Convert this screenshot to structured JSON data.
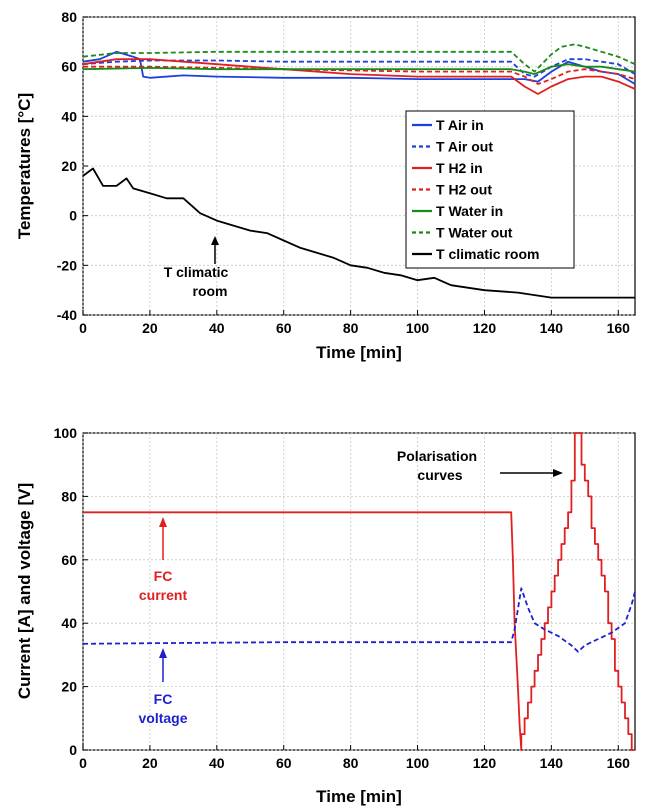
{
  "chart_data": [
    {
      "type": "line",
      "xlabel": "Time [min]",
      "ylabel": "Temperatures [°C]",
      "xlim": [
        0,
        165
      ],
      "ylim": [
        -40,
        80
      ],
      "xticks": [
        "0",
        "20",
        "40",
        "60",
        "80",
        "100",
        "120",
        "140",
        "160"
      ],
      "yticks": [
        "-40",
        "-20",
        "0",
        "20",
        "40",
        "60",
        "80"
      ],
      "legend_position": "inside-right",
      "series": [
        {
          "name": "T Air in",
          "color": "#1f3fdc",
          "dash": "solid",
          "x": [
            0,
            5,
            10,
            15,
            17,
            18,
            20,
            30,
            40,
            60,
            80,
            100,
            120,
            128,
            132,
            136,
            140,
            145,
            150,
            155,
            160,
            165
          ],
          "y": [
            62,
            63,
            66,
            64,
            63,
            56,
            55.5,
            56.5,
            56,
            55.5,
            55.5,
            55,
            55,
            55,
            55,
            54,
            58,
            62,
            60,
            58,
            57,
            53
          ]
        },
        {
          "name": "T Air out",
          "color": "#1f3fdc",
          "dash": "dash",
          "x": [
            0,
            10,
            20,
            40,
            60,
            80,
            100,
            120,
            128,
            132,
            135,
            140,
            145,
            150,
            155,
            160,
            165
          ],
          "y": [
            61,
            62,
            62.5,
            62.5,
            62,
            62,
            62,
            62,
            62,
            57,
            56,
            60,
            63,
            63,
            62,
            61,
            57
          ]
        },
        {
          "name": "T H2 in",
          "color": "#e02020",
          "dash": "solid",
          "x": [
            0,
            10,
            20,
            30,
            40,
            60,
            80,
            100,
            120,
            128,
            132,
            136,
            140,
            145,
            150,
            155,
            160,
            165
          ],
          "y": [
            61,
            63,
            63,
            62,
            61,
            59,
            57,
            56,
            56,
            56,
            52,
            49,
            52,
            55,
            56,
            56,
            54,
            51
          ]
        },
        {
          "name": "T H2 out",
          "color": "#e02020",
          "dash": "dash",
          "x": [
            0,
            20,
            40,
            60,
            80,
            100,
            120,
            128,
            132,
            136,
            140,
            145,
            150,
            155,
            160,
            165
          ],
          "y": [
            60,
            60,
            59.5,
            59,
            58.5,
            58,
            58,
            58,
            56,
            53,
            55,
            58,
            59,
            58,
            57,
            55
          ]
        },
        {
          "name": "T Water in",
          "color": "#1a8a1a",
          "dash": "solid",
          "x": [
            0,
            20,
            40,
            60,
            80,
            100,
            120,
            128,
            132,
            135,
            140,
            145,
            150,
            155,
            160,
            165
          ],
          "y": [
            59,
            59.5,
            59,
            59,
            59,
            59,
            59,
            59,
            58,
            57,
            60,
            61,
            60,
            60,
            59,
            58
          ]
        },
        {
          "name": "T Water out",
          "color": "#1a8a1a",
          "dash": "dash",
          "x": [
            0,
            10,
            20,
            40,
            60,
            80,
            100,
            120,
            128,
            132,
            135,
            140,
            143,
            147,
            150,
            155,
            160,
            165
          ],
          "y": [
            64,
            65.5,
            65.5,
            66,
            66,
            66,
            66,
            66,
            66,
            61,
            58,
            65,
            68,
            69,
            68,
            66,
            64,
            61
          ]
        },
        {
          "name": "T climatic room",
          "color": "#000000",
          "dash": "solid",
          "x": [
            0,
            3,
            6,
            10,
            13,
            15,
            20,
            25,
            30,
            35,
            40,
            45,
            50,
            55,
            60,
            65,
            70,
            75,
            80,
            85,
            90,
            95,
            100,
            105,
            110,
            115,
            120,
            130,
            140,
            150,
            160,
            165
          ],
          "y": [
            16,
            19,
            12,
            12,
            15,
            11,
            9,
            7,
            7,
            1,
            -2,
            -4,
            -6,
            -7,
            -10,
            -13,
            -15,
            -17,
            -20,
            -21,
            -23,
            -24,
            -26,
            -25,
            -28,
            -29,
            -30,
            -31,
            -33,
            -33,
            -33,
            -33
          ]
        }
      ],
      "annotations": [
        {
          "lines": [
            "T climatic",
            "room"
          ],
          "x": 40,
          "y": -3
        }
      ]
    },
    {
      "type": "line",
      "xlabel": "Time [min]",
      "ylabel": "Current [A] and voltage [V]",
      "xlim": [
        0,
        165
      ],
      "ylim": [
        0,
        100
      ],
      "xticks": [
        "0",
        "20",
        "40",
        "60",
        "80",
        "100",
        "120",
        "140",
        "160"
      ],
      "yticks": [
        "0",
        "20",
        "40",
        "60",
        "80",
        "100"
      ],
      "series": [
        {
          "name": "FC current",
          "color": "#e02020",
          "dash": "solid",
          "x": [
            0,
            128,
            128.5,
            129,
            130,
            130.5,
            131,
            131,
            132,
            132,
            133,
            133,
            134,
            134,
            135,
            135,
            136,
            136,
            137,
            137,
            138,
            138,
            139,
            139,
            140,
            140,
            141,
            141,
            142,
            142,
            143,
            143,
            144,
            144,
            145,
            145,
            146,
            146,
            147,
            147,
            149,
            149,
            150,
            150,
            151,
            151,
            152,
            152,
            153,
            153,
            154,
            154,
            155,
            155,
            156,
            156,
            157,
            157,
            158,
            158,
            159,
            159,
            160,
            160,
            161,
            161,
            162,
            162,
            163,
            163,
            164,
            164,
            165
          ],
          "y": [
            75,
            75,
            60,
            40,
            20,
            8,
            0,
            5,
            5,
            10,
            10,
            15,
            15,
            20,
            20,
            25,
            25,
            30,
            30,
            35,
            35,
            40,
            40,
            45,
            45,
            50,
            50,
            55,
            55,
            60,
            60,
            65,
            65,
            70,
            70,
            75,
            75,
            85,
            85,
            100,
            100,
            90,
            90,
            85,
            85,
            80,
            80,
            70,
            70,
            65,
            65,
            60,
            60,
            55,
            55,
            50,
            50,
            40,
            40,
            35,
            35,
            25,
            25,
            20,
            20,
            15,
            15,
            10,
            10,
            5,
            5,
            0,
            0
          ]
        },
        {
          "name": "FC voltage",
          "color": "#2020d0",
          "dash": "dash",
          "x": [
            0,
            20,
            60,
            100,
            128,
            129,
            131,
            133,
            135,
            138,
            142,
            146,
            148,
            150,
            154,
            158,
            162,
            164,
            165
          ],
          "y": [
            33.5,
            33.7,
            34,
            34,
            34,
            38,
            51,
            45,
            40,
            38,
            36,
            33,
            31,
            33,
            35,
            37,
            40,
            46,
            50
          ]
        }
      ],
      "annotations": [
        {
          "lines": [
            "Polarisation",
            "curves"
          ],
          "x": 148,
          "y": 85
        },
        {
          "lines": [
            "FC",
            "current"
          ],
          "x": 25,
          "y": 75
        },
        {
          "lines": [
            "FC",
            "voltage"
          ],
          "x": 25,
          "y": 34
        }
      ]
    }
  ]
}
